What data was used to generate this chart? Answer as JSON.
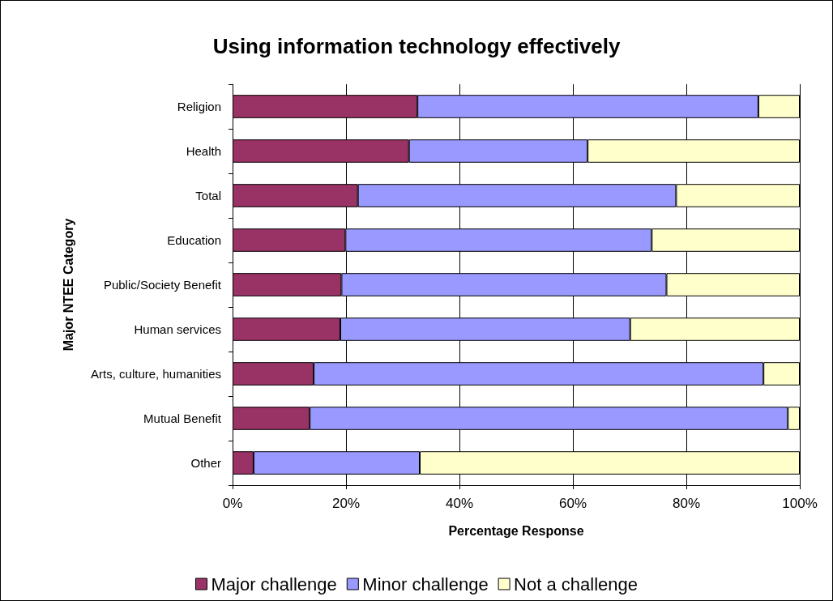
{
  "chart_data": {
    "type": "bar",
    "orientation": "horizontal",
    "stacked": true,
    "title": "Using information technology effectively",
    "xlabel": "Percentage Response",
    "ylabel": "Major NTEE Category",
    "categories": [
      "Religion",
      "Health",
      "Total",
      "Education",
      "Public/Society Benefit",
      "Human services",
      "Arts, culture, humanities",
      "Mutual Benefit",
      "Other"
    ],
    "series": [
      {
        "name": "Major challenge",
        "color": "#993366",
        "values": [
          32.6,
          31.1,
          22.1,
          19.9,
          19.2,
          19.0,
          14.3,
          13.6,
          3.7
        ]
      },
      {
        "name": "Minor challenge",
        "color": "#9999ff",
        "values": [
          60.1,
          31.5,
          56.1,
          54.0,
          57.3,
          51.1,
          79.3,
          84.3,
          29.3
        ]
      },
      {
        "name": "Not a challenge",
        "color": "#ffffcc",
        "values": [
          7.3,
          37.4,
          21.8,
          26.1,
          23.5,
          29.9,
          6.4,
          2.1,
          67.0
        ]
      }
    ],
    "xlim": [
      0,
      100
    ],
    "xticks": [
      {
        "value": 0,
        "label": "0%"
      },
      {
        "value": 20,
        "label": "20%"
      },
      {
        "value": 40,
        "label": "40%"
      },
      {
        "value": 60,
        "label": "60%"
      },
      {
        "value": 80,
        "label": "80%"
      },
      {
        "value": 100,
        "label": "100%"
      }
    ],
    "grid": "x",
    "legend": "bottom"
  }
}
